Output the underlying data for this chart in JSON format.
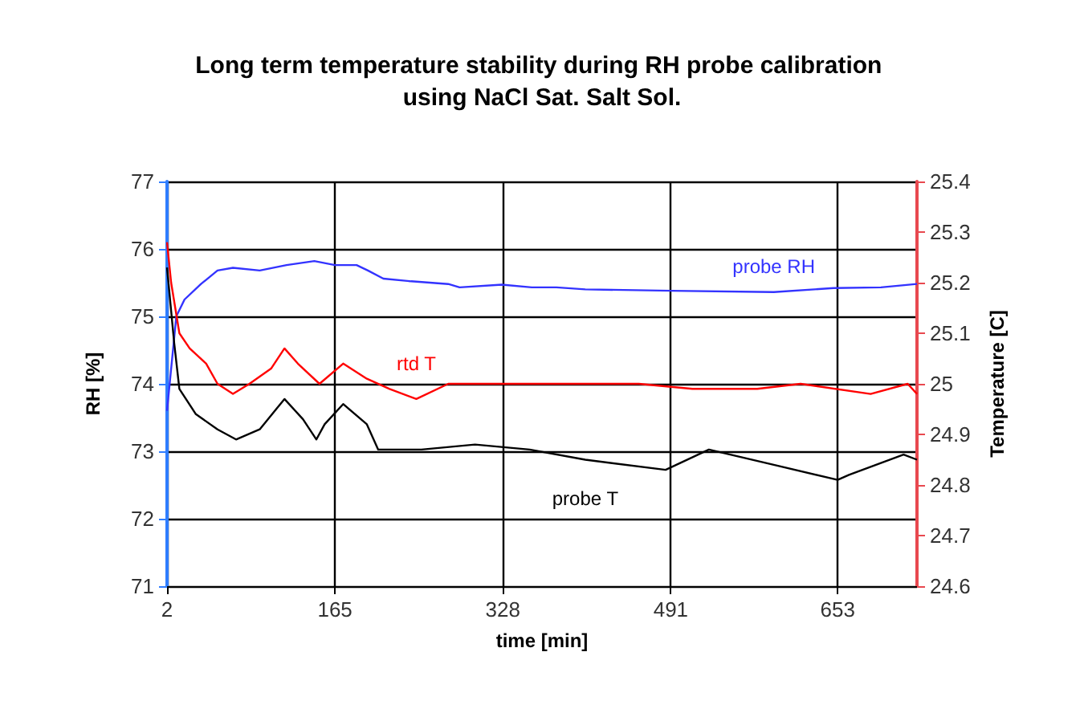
{
  "chart_data": {
    "type": "line",
    "title": "Long term temperature stability during RH probe calibration using NaCl Sat. Salt Sol.",
    "xlabel": "time [min]",
    "ylabel": "RH [%]",
    "y2label": "Temperature [C]",
    "xlim": [
      2,
      730
    ],
    "xticks": [
      2,
      165,
      328,
      491,
      653
    ],
    "ylim": [
      71,
      77
    ],
    "yticks": [
      71,
      72,
      73,
      74,
      75,
      76,
      77
    ],
    "y2lim": [
      24.6,
      25.4
    ],
    "y2ticks": [
      24.6,
      24.7,
      24.8,
      24.9,
      25,
      25.1,
      25.2,
      25.3,
      25.4
    ],
    "grid": true,
    "legend": false,
    "marker": "none",
    "line_style": "solid",
    "series": [
      {
        "name": "probe RH",
        "color": "#3333ff",
        "axis": "y",
        "x": [
          2,
          11,
          19,
          35,
          51,
          66,
          92,
          118,
          145,
          165,
          186,
          197,
          212,
          239,
          275,
          286,
          327,
          356,
          380,
          408,
          492,
          591,
          649,
          695,
          730
        ],
        "values": [
          73.6,
          75.0,
          75.25,
          75.48,
          75.68,
          75.72,
          75.68,
          75.76,
          75.82,
          75.76,
          75.76,
          75.68,
          75.56,
          75.52,
          75.48,
          75.43,
          75.47,
          75.43,
          75.43,
          75.4,
          75.38,
          75.36,
          75.42,
          75.43,
          75.48
        ]
      },
      {
        "name": "rtd T",
        "color": "#ff0000",
        "axis": "y2",
        "x": [
          2,
          6,
          14,
          24,
          40,
          51,
          66,
          82,
          103,
          116,
          129,
          150,
          173,
          196,
          218,
          244,
          275,
          327,
          356,
          460,
          512,
          575,
          617,
          685,
          721,
          730
        ],
        "values": [
          25.28,
          25.2,
          25.1,
          25.07,
          25.04,
          25.0,
          24.98,
          25.0,
          25.03,
          25.07,
          25.04,
          25.0,
          25.04,
          25.01,
          24.99,
          24.97,
          25.0,
          25.0,
          25.0,
          25.0,
          24.99,
          24.99,
          25.0,
          24.98,
          25.0,
          24.98
        ]
      },
      {
        "name": "probe T",
        "color": "#000000",
        "axis": "y2",
        "x": [
          2,
          9,
          14,
          30,
          51,
          69,
          92,
          116,
          134,
          147,
          155,
          173,
          196,
          207,
          249,
          301,
          354,
          408,
          486,
          528,
          591,
          653,
          664,
          717,
          730
        ],
        "values": [
          25.23,
          25.08,
          24.99,
          24.94,
          24.91,
          24.89,
          24.91,
          24.97,
          24.93,
          24.89,
          24.92,
          24.96,
          24.92,
          24.87,
          24.87,
          24.88,
          24.87,
          24.85,
          24.83,
          24.87,
          24.84,
          24.81,
          24.82,
          24.86,
          24.85
        ]
      }
    ]
  }
}
